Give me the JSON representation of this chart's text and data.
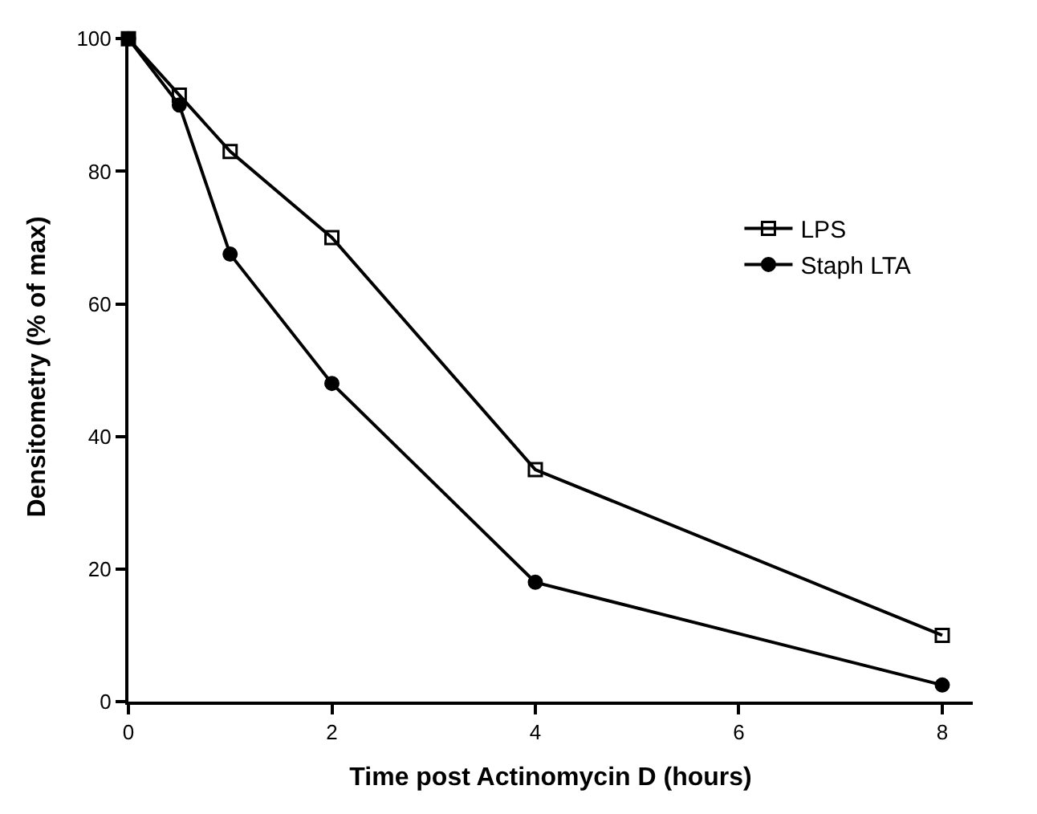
{
  "chart_data": {
    "type": "line",
    "xlabel": "Time post Actinomycin D (hours)",
    "ylabel": "Densitometry (% of max)",
    "x": [
      0,
      0.5,
      1,
      2,
      4,
      8
    ],
    "series": [
      {
        "name": "LPS",
        "color": "#000000",
        "marker": "square",
        "values": [
          100,
          91.5,
          83,
          70,
          35,
          10
        ]
      },
      {
        "name": "Staph LTA",
        "color": "#000000",
        "marker": "circle",
        "values": [
          100,
          90,
          67.5,
          48,
          18,
          2.5
        ]
      }
    ],
    "xlim": [
      0,
      8.3
    ],
    "xticks": [
      0,
      2,
      4,
      6,
      8
    ],
    "ylim": [
      0,
      101
    ],
    "yticks": [
      0,
      20,
      40,
      60,
      80,
      100
    ],
    "legend": "right",
    "line_style": "solid"
  }
}
